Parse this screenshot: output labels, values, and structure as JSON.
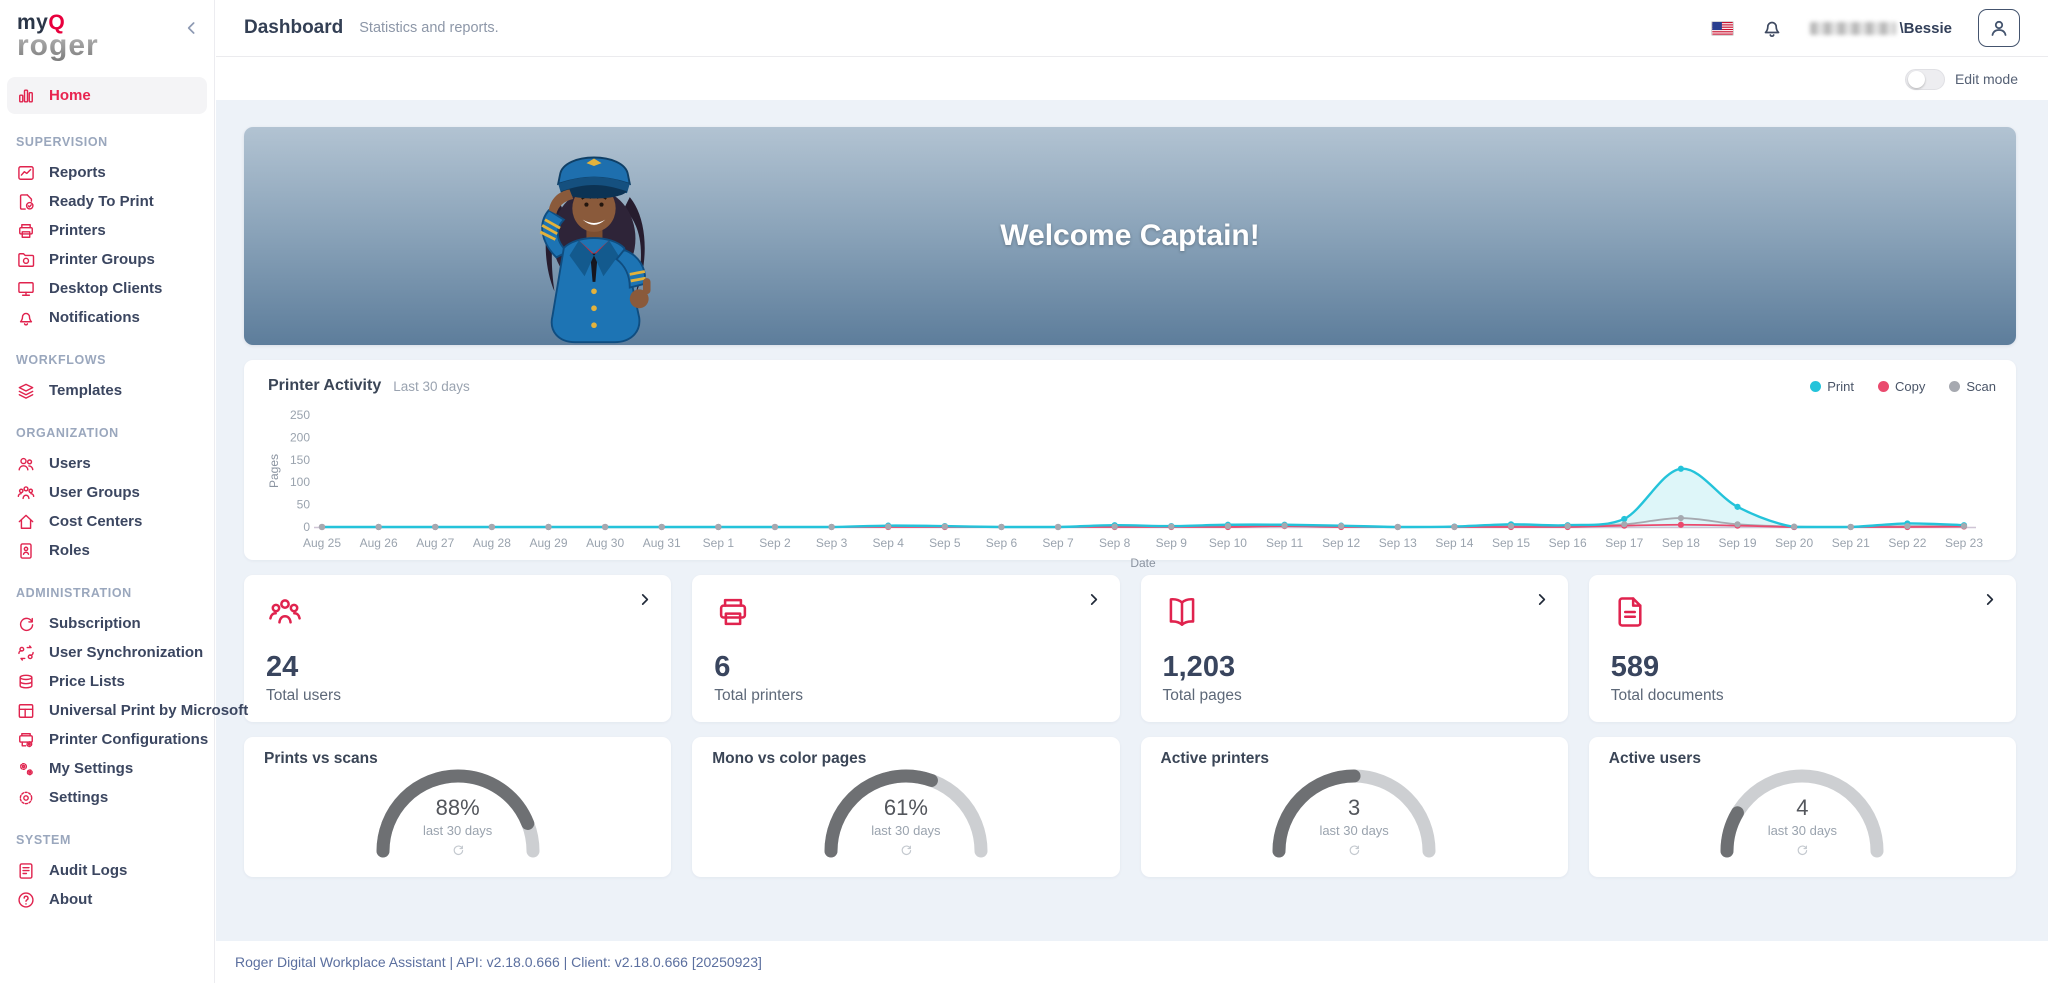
{
  "brand": {
    "my": "my",
    "q": "Q",
    "roger": "roger"
  },
  "topbar": {
    "title": "Dashboard",
    "subtitle": "Statistics and reports.",
    "username_suffix": "\\Bessie"
  },
  "editbar": {
    "edit_mode_label": "Edit mode"
  },
  "banner": {
    "welcome": "Welcome Captain!"
  },
  "sidebar": {
    "home": "Home",
    "sections": [
      {
        "header": "SUPERVISION",
        "items": [
          "Reports",
          "Ready To Print",
          "Printers",
          "Printer Groups",
          "Desktop Clients",
          "Notifications"
        ]
      },
      {
        "header": "WORKFLOWS",
        "items": [
          "Templates"
        ]
      },
      {
        "header": "ORGANIZATION",
        "items": [
          "Users",
          "User Groups",
          "Cost Centers",
          "Roles"
        ]
      },
      {
        "header": "ADMINISTRATION",
        "items": [
          "Subscription",
          "User Synchronization",
          "Price Lists",
          "Universal Print by Microsoft",
          "Printer Configurations",
          "My Settings",
          "Settings"
        ]
      },
      {
        "header": "SYSTEM",
        "items": [
          "Audit Logs",
          "About"
        ]
      }
    ]
  },
  "chart": {
    "title": "Printer Activity",
    "range_label": "Last 30 days",
    "legend": [
      {
        "label": "Print",
        "color": "#24c3da"
      },
      {
        "label": "Copy",
        "color": "#ea4a6e"
      },
      {
        "label": "Scan",
        "color": "#a6a9b0"
      }
    ]
  },
  "chart_data": {
    "type": "area",
    "title": "Printer Activity",
    "xlabel": "Date",
    "ylabel": "Pages",
    "ylim": [
      0,
      250
    ],
    "yticks": [
      0,
      50,
      100,
      150,
      200,
      250
    ],
    "grid": false,
    "legend_position": "top-right",
    "x": [
      "Aug 25",
      "Aug 26",
      "Aug 27",
      "Aug 28",
      "Aug 29",
      "Aug 30",
      "Aug 31",
      "Sep 1",
      "Sep 2",
      "Sep 3",
      "Sep 4",
      "Sep 5",
      "Sep 6",
      "Sep 7",
      "Sep 8",
      "Sep 9",
      "Sep 10",
      "Sep 11",
      "Sep 12",
      "Sep 13",
      "Sep 14",
      "Sep 15",
      "Sep 16",
      "Sep 17",
      "Sep 18",
      "Sep 19",
      "Sep 20",
      "Sep 21",
      "Sep 22",
      "Sep 23"
    ],
    "series": [
      {
        "name": "Print",
        "color": "#24c3da",
        "area": true,
        "values": [
          0,
          0,
          0,
          0,
          0,
          0,
          0,
          0,
          0,
          0,
          3,
          2,
          0,
          0,
          4,
          2,
          5,
          5,
          3,
          0,
          1,
          6,
          4,
          18,
          130,
          45,
          0,
          0,
          8,
          4
        ]
      },
      {
        "name": "Copy",
        "color": "#ea4a6e",
        "area": false,
        "values": [
          0,
          0,
          0,
          0,
          0,
          0,
          0,
          0,
          0,
          0,
          0,
          0,
          0,
          0,
          0,
          0,
          0,
          2,
          0,
          0,
          0,
          0,
          0,
          3,
          5,
          3,
          0,
          0,
          0,
          1
        ]
      },
      {
        "name": "Scan",
        "color": "#a6a9b0",
        "area": false,
        "values": [
          0,
          0,
          0,
          0,
          0,
          0,
          0,
          0,
          0,
          0,
          1,
          1,
          0,
          0,
          1,
          1,
          2,
          3,
          2,
          0,
          0,
          2,
          2,
          6,
          20,
          6,
          1,
          0,
          2,
          2
        ]
      }
    ]
  },
  "stat_cards": [
    {
      "value": "24",
      "label": "Total users",
      "icon": "users-group-icon"
    },
    {
      "value": "6",
      "label": "Total printers",
      "icon": "printer-icon"
    },
    {
      "value": "1,203",
      "label": "Total pages",
      "icon": "book-icon"
    },
    {
      "value": "589",
      "label": "Total documents",
      "icon": "document-icon"
    }
  ],
  "gauges": [
    {
      "title": "Prints vs scans",
      "value": "88%",
      "caption": "last 30 days",
      "fraction": 0.88
    },
    {
      "title": "Mono vs color pages",
      "value": "61%",
      "caption": "last 30 days",
      "fraction": 0.61
    },
    {
      "title": "Active printers",
      "value": "3",
      "caption": "last 30 days",
      "fraction": 0.5
    },
    {
      "title": "Active users",
      "value": "4",
      "caption": "last 30 days",
      "fraction": 0.17
    }
  ],
  "footer": {
    "text": "Roger Digital Workplace Assistant | API: v2.18.0.666 | Client: v2.18.0.666 [20250923]"
  }
}
